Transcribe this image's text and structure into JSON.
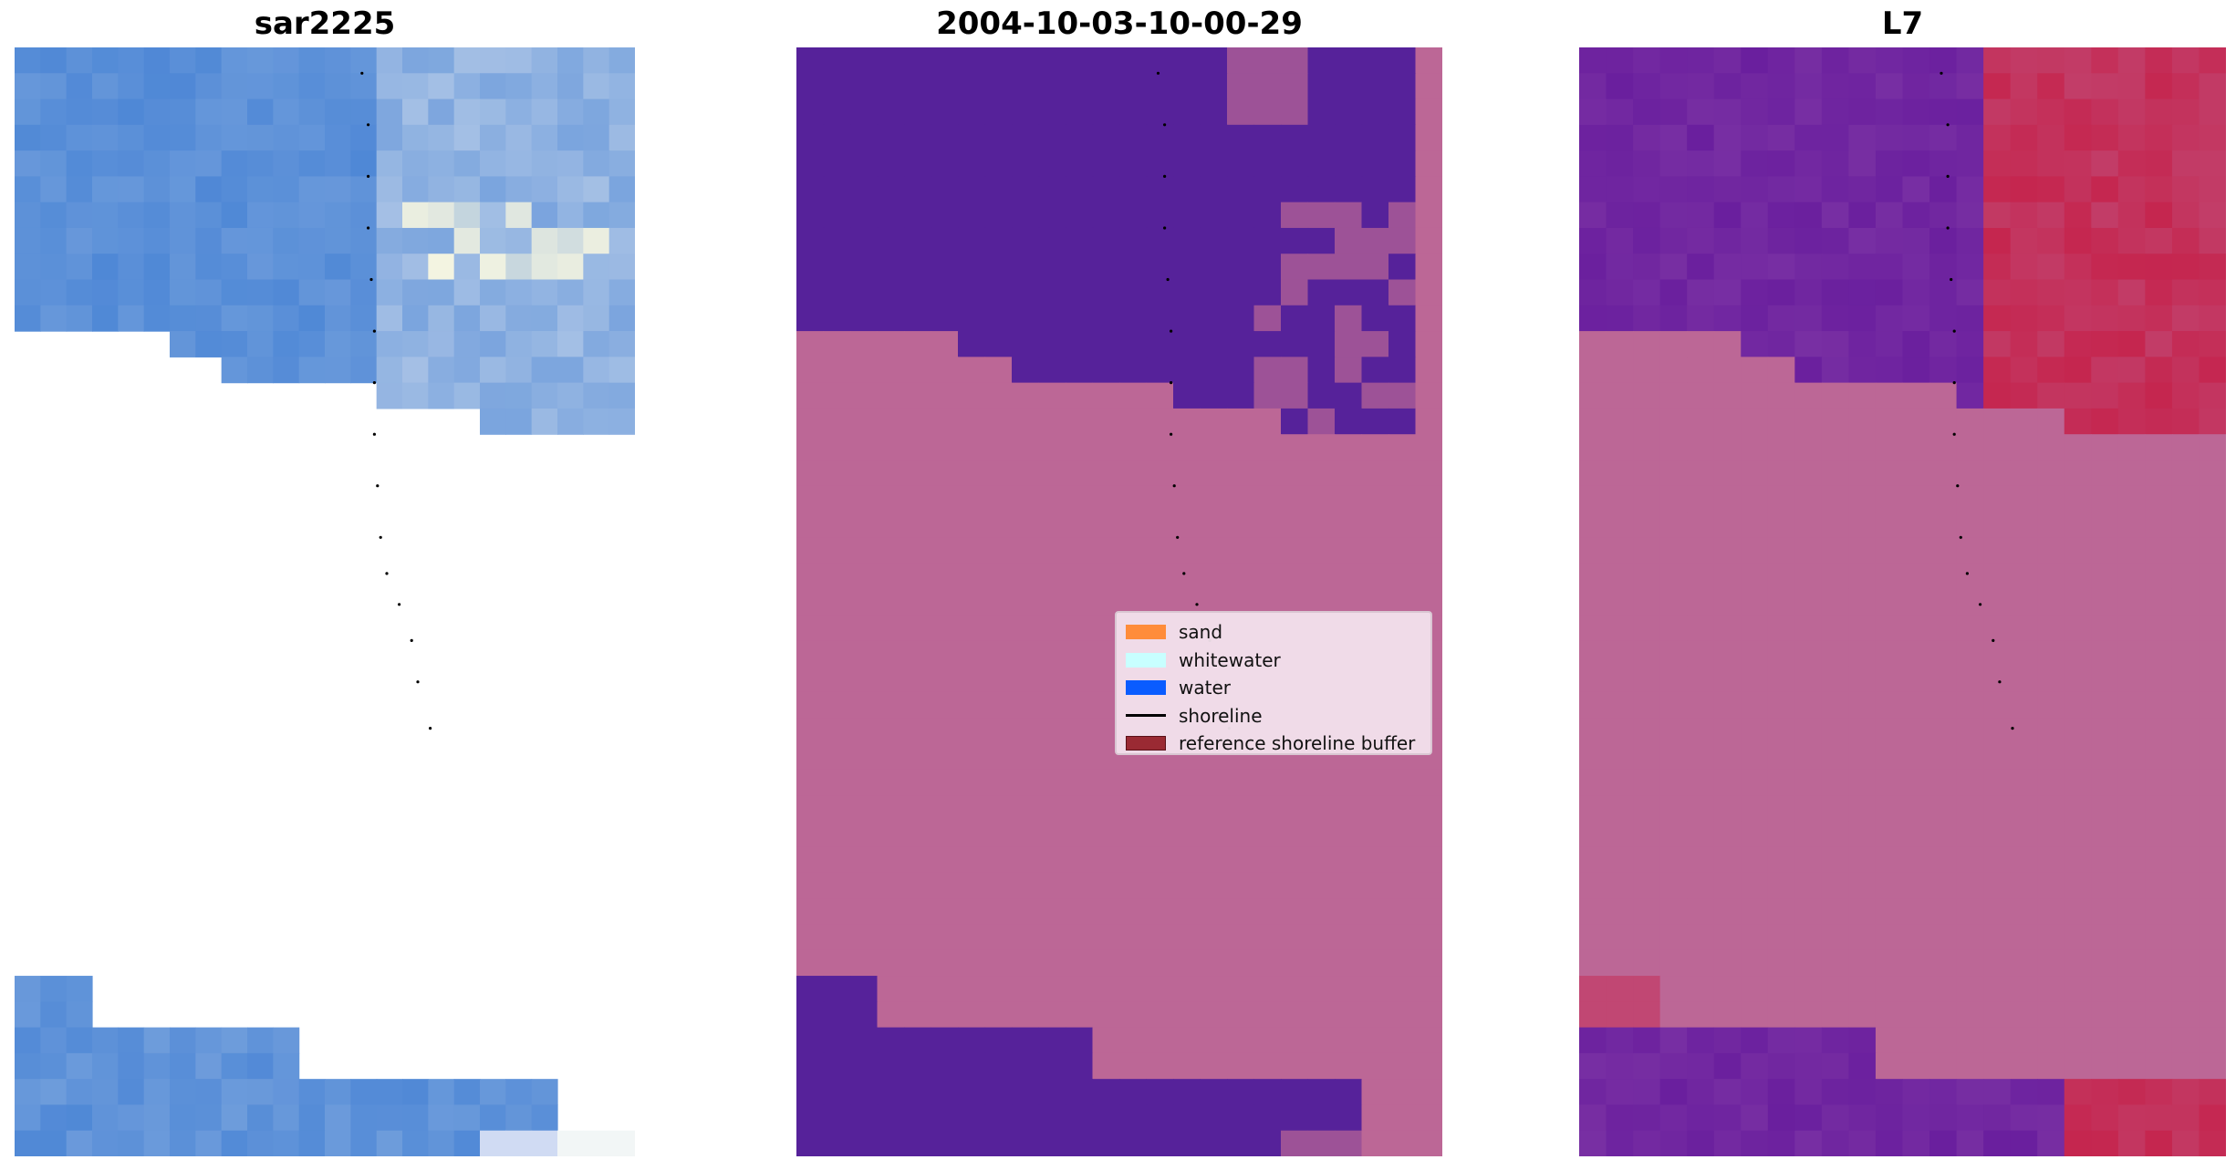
{
  "panels": [
    {
      "title": "sar2225"
    },
    {
      "title": "2004-10-03-10-00-29"
    },
    {
      "title": "L7"
    }
  ],
  "legend": {
    "items": [
      {
        "label": "sand",
        "color": "#ff8c3a",
        "kind": "patch"
      },
      {
        "label": "whitewater",
        "color": "#c8ffff",
        "kind": "patch"
      },
      {
        "label": "water",
        "color": "#0a5cff",
        "kind": "patch"
      },
      {
        "label": "shoreline",
        "color": "#000000",
        "kind": "line"
      },
      {
        "label": "reference shoreline buffer",
        "color": "#9a2a33",
        "kind": "patch"
      }
    ]
  },
  "colors": {
    "sar_water": "#4f88d6",
    "class_purple": "#56229a",
    "class_pink": "#bc6796",
    "l7_purple": "#6a1f9e",
    "l7_red": "#c5264f",
    "l7_pink": "#bc6796"
  }
}
